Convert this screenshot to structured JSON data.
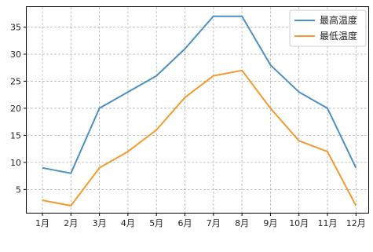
{
  "chart_data": {
    "type": "line",
    "title": "",
    "xlabel": "",
    "ylabel": "",
    "categories": [
      "1月",
      "2月",
      "3月",
      "4月",
      "5月",
      "6月",
      "7月",
      "8月",
      "9月",
      "10月",
      "11月",
      "12月"
    ],
    "ylim": [
      0.7,
      38.7
    ],
    "yticks": [
      5,
      10,
      15,
      20,
      25,
      30,
      35
    ],
    "grid": true,
    "legend_position": "top-right",
    "series": [
      {
        "name": "最高温度",
        "color": "#4a90c2",
        "values": [
          9,
          8,
          20,
          23,
          26,
          31,
          37,
          37,
          28,
          23,
          20,
          9
        ]
      },
      {
        "name": "最低温度",
        "color": "#f39a2e",
        "values": [
          3,
          2,
          9,
          12,
          16,
          22,
          26,
          27,
          20,
          14,
          12,
          2
        ]
      }
    ]
  }
}
